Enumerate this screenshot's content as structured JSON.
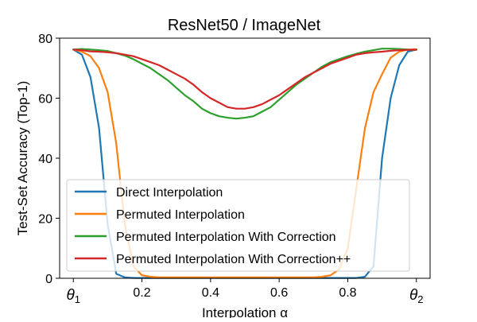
{
  "chart_data": {
    "type": "line",
    "title": "ResNet50 / ImageNet",
    "xlabel": "Interpolation α",
    "ylabel": "Test-Set Accuracy (Top-1)",
    "xlim": [
      -0.04,
      1.04
    ],
    "ylim": [
      0,
      80
    ],
    "x_ticks": [
      {
        "value": 0.0,
        "label": "θ",
        "sub": "1"
      },
      {
        "value": 0.2,
        "label": "0.2",
        "sub": ""
      },
      {
        "value": 0.4,
        "label": "0.4",
        "sub": ""
      },
      {
        "value": 0.6,
        "label": "0.6",
        "sub": ""
      },
      {
        "value": 0.8,
        "label": "0.8",
        "sub": ""
      },
      {
        "value": 1.0,
        "label": "θ",
        "sub": "2"
      }
    ],
    "y_ticks": [
      0,
      20,
      40,
      60,
      80
    ],
    "grid": false,
    "legend_position": "lower-center",
    "x": [
      0.0,
      0.025,
      0.05,
      0.075,
      0.1,
      0.125,
      0.15,
      0.175,
      0.2,
      0.225,
      0.25,
      0.275,
      0.3,
      0.325,
      0.35,
      0.375,
      0.4,
      0.425,
      0.45,
      0.475,
      0.5,
      0.525,
      0.55,
      0.575,
      0.6,
      0.625,
      0.65,
      0.675,
      0.7,
      0.725,
      0.75,
      0.775,
      0.8,
      0.825,
      0.85,
      0.875,
      0.9,
      0.925,
      0.95,
      0.975,
      1.0
    ],
    "series": [
      {
        "name": "Direct Interpolation",
        "color": "#1f77b4",
        "values": [
          76.2,
          74.5,
          67.0,
          50.0,
          18.0,
          1.5,
          0.3,
          0.1,
          0.1,
          0.1,
          0.1,
          0.1,
          0.1,
          0.1,
          0.1,
          0.1,
          0.1,
          0.1,
          0.1,
          0.1,
          0.1,
          0.1,
          0.1,
          0.1,
          0.1,
          0.1,
          0.1,
          0.1,
          0.1,
          0.1,
          0.1,
          0.1,
          0.1,
          0.1,
          0.5,
          4.0,
          40.0,
          60.0,
          71.0,
          75.5,
          76.2
        ]
      },
      {
        "name": "Permuted Interpolation",
        "color": "#ff7f0e",
        "values": [
          76.2,
          75.5,
          74.0,
          70.0,
          62.0,
          45.0,
          18.0,
          4.0,
          1.0,
          0.5,
          0.3,
          0.3,
          0.3,
          0.3,
          0.3,
          0.3,
          0.3,
          0.3,
          0.3,
          0.3,
          0.3,
          0.3,
          0.3,
          0.3,
          0.3,
          0.3,
          0.3,
          0.3,
          0.3,
          0.5,
          1.0,
          3.0,
          10.0,
          30.0,
          50.0,
          62.0,
          68.0,
          73.5,
          75.5,
          76.2,
          76.3
        ]
      },
      {
        "name": "Permuted Interpolation With Correction",
        "color": "#2ca02c",
        "values": [
          76.2,
          76.4,
          76.2,
          76.0,
          75.7,
          75.0,
          74.2,
          73.0,
          71.5,
          70.0,
          68.0,
          66.0,
          63.5,
          61.0,
          59.0,
          56.5,
          55.0,
          54.0,
          53.5,
          53.2,
          53.5,
          54.0,
          55.5,
          57.0,
          59.5,
          62.0,
          64.5,
          66.5,
          68.5,
          70.5,
          72.0,
          73.0,
          74.0,
          74.8,
          75.5,
          76.0,
          76.5,
          76.5,
          76.4,
          76.2,
          76.1
        ]
      },
      {
        "name": "Permuted Interpolation With Correction++",
        "color": "#d62728",
        "values": [
          76.2,
          76.0,
          75.6,
          75.5,
          75.3,
          75.0,
          74.5,
          74.0,
          73.0,
          72.0,
          71.0,
          69.5,
          68.0,
          66.5,
          64.5,
          62.0,
          60.0,
          58.5,
          57.0,
          56.5,
          56.5,
          57.0,
          58.0,
          59.5,
          61.0,
          63.0,
          65.0,
          67.0,
          68.5,
          70.0,
          71.5,
          72.5,
          73.5,
          74.5,
          75.0,
          75.3,
          75.5,
          75.8,
          76.0,
          76.1,
          76.2
        ]
      }
    ]
  }
}
